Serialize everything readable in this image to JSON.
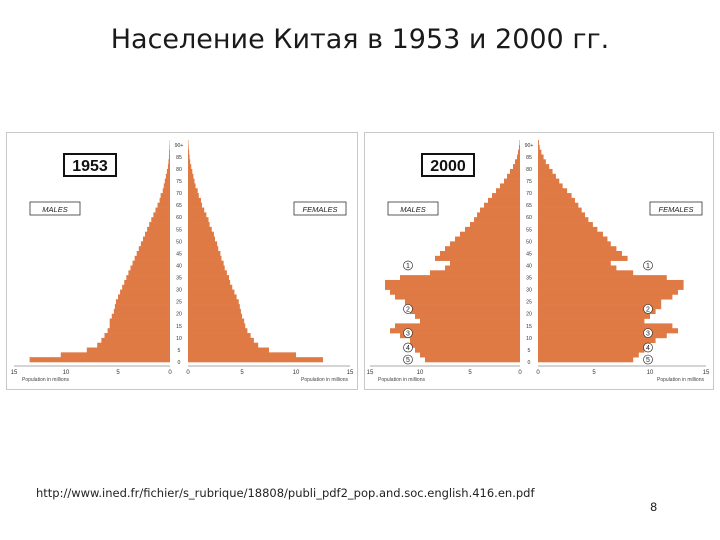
{
  "slide": {
    "title": "Население Китая в 1953 и 2000 гг.",
    "source": "http://www.ined.fr/fichier/s_rubrique/18808/publi_pdf2_pop.and.soc.english.416.en.pdf",
    "page_number": "8"
  },
  "colors": {
    "bars": "#e07a45",
    "frame": "#c8c8c8",
    "year_box": "#111111"
  },
  "chart_data": [
    {
      "type": "bar",
      "orientation": "population-pyramid",
      "title": "1953",
      "left_label": "MALES",
      "right_label": "FEMALES",
      "xlabel": "Population in millions",
      "xlim": [
        0,
        15
      ],
      "x_ticks": [
        "15",
        "10",
        "5",
        "0"
      ],
      "x_ticks_right": [
        "0",
        "5",
        "10",
        "15"
      ],
      "age_ticks": [
        "0",
        "5",
        "10",
        "15",
        "20",
        "25",
        "30",
        "35",
        "40",
        "45",
        "50",
        "55",
        "60",
        "65",
        "70",
        "75",
        "80",
        "85",
        "90+"
      ],
      "ages": [
        0,
        2,
        4,
        6,
        8,
        10,
        12,
        14,
        16,
        18,
        20,
        22,
        24,
        26,
        28,
        30,
        32,
        34,
        36,
        38,
        40,
        42,
        44,
        46,
        48,
        50,
        52,
        54,
        56,
        58,
        60,
        62,
        64,
        66,
        68,
        70,
        72,
        74,
        76,
        78,
        80,
        82,
        84,
        86,
        88,
        90
      ],
      "series": [
        {
          "name": "MALES",
          "values": [
            13.5,
            10.5,
            8.0,
            7.0,
            6.6,
            6.3,
            6.0,
            5.8,
            5.8,
            5.6,
            5.4,
            5.3,
            5.2,
            5.0,
            4.8,
            4.6,
            4.4,
            4.2,
            4.0,
            3.8,
            3.6,
            3.4,
            3.2,
            3.0,
            2.8,
            2.6,
            2.4,
            2.2,
            2.0,
            1.8,
            1.6,
            1.4,
            1.2,
            1.0,
            0.9,
            0.7,
            0.6,
            0.5,
            0.4,
            0.3,
            0.2,
            0.15,
            0.1,
            0.08,
            0.05,
            0.03
          ]
        },
        {
          "name": "FEMALES",
          "values": [
            12.5,
            10.0,
            7.5,
            6.5,
            6.1,
            5.8,
            5.5,
            5.3,
            5.2,
            5.0,
            4.9,
            4.8,
            4.7,
            4.5,
            4.3,
            4.1,
            3.9,
            3.8,
            3.6,
            3.4,
            3.3,
            3.1,
            3.0,
            2.8,
            2.7,
            2.5,
            2.4,
            2.2,
            2.0,
            1.9,
            1.7,
            1.5,
            1.3,
            1.2,
            1.0,
            0.9,
            0.7,
            0.6,
            0.5,
            0.4,
            0.3,
            0.2,
            0.15,
            0.1,
            0.06,
            0.04
          ]
        }
      ],
      "markers": []
    },
    {
      "type": "bar",
      "orientation": "population-pyramid",
      "title": "2000",
      "left_label": "MALES",
      "right_label": "FEMALES",
      "xlabel": "Population in millions",
      "xlim": [
        0,
        15
      ],
      "x_ticks": [
        "15",
        "10",
        "5",
        "0"
      ],
      "x_ticks_right": [
        "0",
        "5",
        "10",
        "15"
      ],
      "age_ticks": [
        "0",
        "5",
        "10",
        "15",
        "20",
        "25",
        "30",
        "35",
        "40",
        "45",
        "50",
        "55",
        "60",
        "65",
        "70",
        "75",
        "80",
        "85",
        "90+"
      ],
      "ages": [
        0,
        2,
        4,
        6,
        8,
        10,
        12,
        14,
        16,
        18,
        20,
        22,
        24,
        26,
        28,
        30,
        32,
        34,
        36,
        38,
        40,
        42,
        44,
        46,
        48,
        50,
        52,
        54,
        56,
        58,
        60,
        62,
        64,
        66,
        68,
        70,
        72,
        74,
        76,
        78,
        80,
        82,
        84,
        86,
        88,
        90
      ],
      "series": [
        {
          "name": "MALES",
          "values": [
            9.5,
            10.0,
            10.5,
            11.0,
            11.0,
            12.0,
            13.0,
            12.5,
            10.0,
            10.5,
            11.0,
            11.5,
            11.5,
            12.5,
            13.0,
            13.5,
            13.5,
            12.0,
            9.0,
            7.5,
            7.0,
            8.5,
            8.0,
            7.5,
            7.0,
            6.5,
            6.0,
            5.5,
            5.0,
            4.6,
            4.3,
            4.0,
            3.6,
            3.2,
            2.8,
            2.4,
            2.0,
            1.6,
            1.3,
            1.0,
            0.7,
            0.5,
            0.3,
            0.2,
            0.1,
            0.05
          ]
        },
        {
          "name": "FEMALES",
          "values": [
            8.5,
            9.0,
            9.5,
            10.0,
            10.5,
            11.5,
            12.5,
            12.0,
            9.5,
            10.0,
            10.5,
            11.0,
            11.0,
            12.0,
            12.5,
            13.0,
            13.0,
            11.5,
            8.5,
            7.0,
            6.5,
            8.0,
            7.5,
            7.0,
            6.5,
            6.2,
            5.8,
            5.3,
            4.9,
            4.5,
            4.2,
            3.9,
            3.6,
            3.3,
            3.0,
            2.6,
            2.2,
            1.9,
            1.6,
            1.3,
            1.0,
            0.7,
            0.5,
            0.3,
            0.15,
            0.08
          ]
        }
      ],
      "markers": [
        {
          "label": "1",
          "age": 40
        },
        {
          "label": "2",
          "age": 22
        },
        {
          "label": "3",
          "age": 12
        },
        {
          "label": "4",
          "age": 6
        },
        {
          "label": "5",
          "age": 1
        }
      ]
    }
  ]
}
